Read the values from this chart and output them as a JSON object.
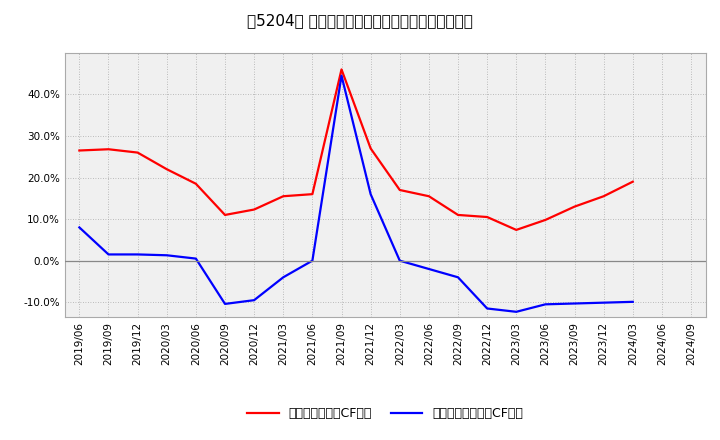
{
  "title": "［5204］ 有利子負債キャッシュフロー比率の推移",
  "x_labels": [
    "2019/06",
    "2019/09",
    "2019/12",
    "2020/03",
    "2020/06",
    "2020/09",
    "2020/12",
    "2021/03",
    "2021/06",
    "2021/09",
    "2021/12",
    "2022/03",
    "2022/06",
    "2022/09",
    "2022/12",
    "2023/03",
    "2023/06",
    "2023/09",
    "2023/12",
    "2024/03",
    "2024/06",
    "2024/09"
  ],
  "red_line": [
    0.265,
    0.268,
    0.26,
    0.22,
    0.185,
    0.11,
    0.123,
    0.155,
    0.16,
    0.46,
    0.27,
    0.17,
    0.155,
    0.11,
    0.105,
    0.074,
    0.098,
    0.13,
    0.155,
    0.19,
    null,
    null
  ],
  "blue_line": [
    0.08,
    0.015,
    0.015,
    0.013,
    0.005,
    -0.104,
    -0.095,
    -0.04,
    0.0,
    0.445,
    0.16,
    0.0,
    -0.02,
    -0.04,
    -0.115,
    -0.123,
    -0.105,
    -0.103,
    -0.101,
    -0.099,
    null,
    null
  ],
  "red_color": "#ff0000",
  "blue_color": "#0000ff",
  "bg_color": "#ffffff",
  "plot_bg_color": "#f0f0f0",
  "grid_color": "#aaaaaa",
  "zero_line_color": "#888888",
  "ylim": [
    -0.135,
    0.5
  ],
  "yticks": [
    -0.1,
    0.0,
    0.1,
    0.2,
    0.3,
    0.4
  ],
  "legend_red": "有利子負債営業CF比率",
  "legend_blue": "有利子負債フリーCF比率",
  "title_fontsize": 11,
  "tick_fontsize": 7.5,
  "legend_fontsize": 9
}
